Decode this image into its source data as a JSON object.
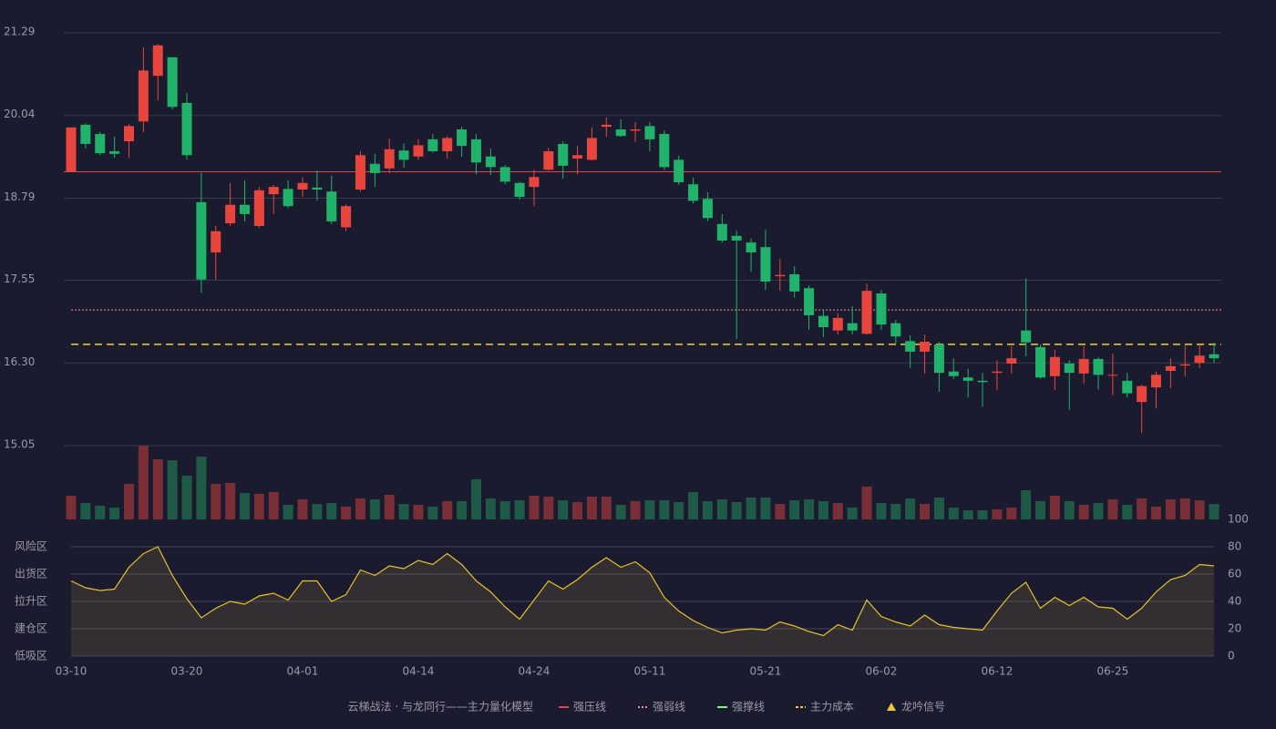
{
  "chart_data": [
    {
      "type": "candlestick",
      "ylim": [
        15.05,
        21.29
      ],
      "yticks": [
        15.05,
        {
          "value": 16.3,
          "label": "16.30"
        },
        17.55,
        18.79,
        20.04,
        21.29
      ],
      "grid": true,
      "up_color": "#e8463c",
      "down_color": "#22b36b",
      "candles": [
        [
          19.19,
          19.86,
          19.19,
          19.86
        ],
        [
          19.9,
          19.61,
          19.54,
          19.92
        ],
        [
          19.76,
          19.47,
          19.44,
          19.79
        ],
        [
          19.5,
          19.46,
          19.4,
          19.72
        ],
        [
          19.65,
          19.88,
          19.4,
          19.91
        ],
        [
          19.95,
          20.72,
          19.79,
          21.07
        ],
        [
          20.64,
          21.1,
          20.27,
          21.12
        ],
        [
          20.92,
          20.17,
          20.13,
          20.92
        ],
        [
          20.23,
          19.44,
          19.37,
          20.38
        ],
        [
          18.73,
          17.56,
          17.36,
          19.17
        ],
        [
          17.97,
          18.29,
          17.56,
          18.37
        ],
        [
          18.41,
          18.69,
          18.37,
          19.02
        ],
        [
          18.69,
          18.55,
          18.44,
          19.06
        ],
        [
          18.37,
          18.91,
          18.34,
          18.96
        ],
        [
          18.85,
          18.96,
          18.55,
          18.99
        ],
        [
          18.93,
          18.67,
          18.64,
          19.06
        ],
        [
          18.92,
          19.02,
          18.81,
          19.11
        ],
        [
          18.95,
          18.92,
          18.75,
          19.21
        ],
        [
          18.89,
          18.44,
          18.4,
          19.13
        ],
        [
          18.35,
          18.67,
          18.29,
          18.7
        ],
        [
          18.92,
          19.44,
          18.89,
          19.5
        ],
        [
          19.31,
          19.17,
          18.96,
          19.46
        ],
        [
          19.24,
          19.53,
          19.17,
          19.69
        ],
        [
          19.51,
          19.37,
          19.25,
          19.62
        ],
        [
          19.42,
          19.59,
          19.37,
          19.68
        ],
        [
          19.68,
          19.5,
          19.48,
          19.76
        ],
        [
          19.5,
          19.7,
          19.39,
          19.73
        ],
        [
          19.83,
          19.58,
          19.42,
          19.87
        ],
        [
          19.68,
          19.33,
          19.15,
          19.76
        ],
        [
          19.42,
          19.26,
          19.14,
          19.54
        ],
        [
          19.26,
          19.04,
          19.0,
          19.29
        ],
        [
          19.02,
          18.81,
          18.77,
          19.04
        ],
        [
          18.96,
          19.11,
          18.67,
          19.22
        ],
        [
          19.22,
          19.5,
          19.21,
          19.55
        ],
        [
          19.61,
          19.28,
          19.08,
          19.65
        ],
        [
          19.39,
          19.44,
          19.15,
          19.58
        ],
        [
          19.37,
          19.7,
          19.36,
          19.86
        ],
        [
          19.87,
          19.9,
          19.72,
          20.01
        ],
        [
          19.83,
          19.73,
          19.72,
          19.98
        ],
        [
          19.81,
          19.83,
          19.64,
          19.94
        ],
        [
          19.88,
          19.68,
          19.5,
          19.94
        ],
        [
          19.76,
          19.26,
          19.22,
          19.81
        ],
        [
          19.37,
          19.03,
          18.99,
          19.43
        ],
        [
          19.0,
          18.75,
          18.71,
          19.1
        ],
        [
          18.78,
          18.49,
          18.44,
          18.88
        ],
        [
          18.4,
          18.15,
          18.12,
          18.55
        ],
        [
          18.22,
          18.15,
          16.66,
          18.3
        ],
        [
          18.12,
          17.97,
          17.68,
          18.18
        ],
        [
          18.05,
          17.53,
          17.4,
          18.31
        ],
        [
          17.61,
          17.63,
          17.39,
          17.87
        ],
        [
          17.64,
          17.38,
          17.29,
          17.76
        ],
        [
          17.43,
          17.02,
          16.8,
          17.47
        ],
        [
          17.01,
          16.84,
          16.69,
          17.1
        ],
        [
          16.79,
          16.98,
          16.73,
          17.05
        ],
        [
          16.9,
          16.79,
          16.73,
          17.16
        ],
        [
          16.74,
          17.39,
          16.73,
          17.5
        ],
        [
          17.35,
          16.88,
          16.8,
          17.4
        ],
        [
          16.9,
          16.7,
          16.59,
          16.95
        ],
        [
          16.63,
          16.47,
          16.22,
          16.72
        ],
        [
          16.47,
          16.62,
          16.14,
          16.73
        ],
        [
          16.58,
          16.15,
          15.86,
          16.62
        ],
        [
          16.17,
          16.1,
          16.06,
          16.37
        ],
        [
          16.08,
          16.03,
          15.78,
          16.21
        ],
        [
          16.03,
          16.01,
          15.64,
          16.15
        ],
        [
          16.15,
          16.17,
          15.89,
          16.34
        ],
        [
          16.29,
          16.37,
          16.14,
          16.55
        ],
        [
          16.79,
          16.61,
          16.4,
          17.58
        ],
        [
          16.54,
          16.08,
          16.06,
          16.58
        ],
        [
          16.1,
          16.39,
          15.89,
          16.5
        ],
        [
          16.29,
          16.15,
          15.59,
          16.34
        ],
        [
          16.14,
          16.36,
          15.99,
          16.55
        ],
        [
          16.36,
          16.12,
          15.9,
          16.39
        ],
        [
          16.11,
          16.12,
          15.81,
          16.44
        ],
        [
          16.03,
          15.84,
          15.78,
          16.15
        ],
        [
          15.71,
          15.95,
          15.24,
          15.97
        ],
        [
          15.93,
          16.12,
          15.61,
          16.17
        ],
        [
          16.18,
          16.25,
          15.92,
          16.37
        ],
        [
          16.26,
          16.28,
          16.1,
          16.58
        ],
        [
          16.3,
          16.41,
          16.22,
          16.58
        ],
        [
          16.43,
          16.37,
          16.3,
          16.61
        ]
      ],
      "lines": [
        {
          "name": "强压线",
          "value": 19.19,
          "color": "#e0454f",
          "style": "solid"
        },
        {
          "name": "强弱线",
          "value": 17.1,
          "color": "#ff8a8a",
          "style": "dotted"
        },
        {
          "name": "强撑线",
          "color": "#7cfc7c",
          "style": "solid"
        },
        {
          "name": "主力成本",
          "value": 16.58,
          "color": "#f5d020",
          "style": "dashed"
        },
        {
          "name": "龙吟信号",
          "color": "#f5c542",
          "style": "triangle"
        }
      ],
      "legend_title": "云梯战法 · 与龙同行——主力量化模型",
      "legend_title_color": "#e8c46a"
    },
    {
      "type": "bar",
      "up_color": "#7a2f36",
      "down_color": "#1e5a45",
      "values": [
        26,
        18,
        15,
        13,
        39,
        81,
        66,
        65,
        48,
        69,
        39,
        40,
        29,
        28,
        30,
        16,
        22,
        17,
        18,
        14,
        23,
        22,
        27,
        17,
        16,
        14,
        20,
        20,
        44,
        23,
        20,
        21,
        26,
        25,
        21,
        19,
        25,
        25,
        16,
        20,
        21,
        21,
        19,
        30,
        20,
        22,
        19,
        24,
        24,
        17,
        21,
        22,
        20,
        18,
        13,
        36,
        18,
        17,
        23,
        17,
        24,
        13,
        10,
        10,
        11,
        13,
        32,
        20,
        26,
        20,
        16,
        18,
        22,
        16,
        23,
        14,
        22,
        23,
        21,
        17
      ]
    },
    {
      "type": "area",
      "color": "#e6c229",
      "fill": "rgba(160,135,70,0.18)",
      "ylim": [
        0,
        100
      ],
      "yticks": [
        0,
        20,
        40,
        60,
        80,
        100
      ],
      "ytick_colors": [
        "#ff3b3b",
        "#ff7043",
        "#4a90e2",
        "#e040fb",
        "#f5a623",
        "#33cc33"
      ],
      "zones": [
        {
          "label": "风险区",
          "value": 80,
          "color": "#f5a623"
        },
        {
          "label": "出货区",
          "value": 60,
          "color": "#e040fb"
        },
        {
          "label": "拉升区",
          "value": 40,
          "color": "#4a90e2"
        },
        {
          "label": "建仓区",
          "value": 20,
          "color": "#ff5050"
        },
        {
          "label": "低吸区",
          "value": 0,
          "color": "#ff3355"
        }
      ],
      "values": [
        55,
        50,
        48,
        49,
        65,
        75,
        80,
        59,
        42,
        28,
        35,
        40,
        38,
        44,
        46,
        41,
        55,
        55,
        40,
        45,
        63,
        59,
        66,
        64,
        70,
        67,
        75,
        67,
        55,
        47,
        36,
        27,
        41,
        55,
        49,
        56,
        65,
        72,
        65,
        69,
        61,
        43,
        33,
        26,
        21,
        17,
        19,
        20,
        19,
        25,
        22,
        18,
        15,
        23,
        19,
        41,
        29,
        25,
        22,
        30,
        23,
        21,
        20,
        19,
        33,
        46,
        54,
        35,
        43,
        37,
        43,
        36,
        35,
        27,
        35,
        47,
        56,
        59,
        67,
        66
      ],
      "categories": [
        "03-10",
        null,
        null,
        null,
        null,
        null,
        null,
        null,
        "03-20",
        null,
        null,
        null,
        null,
        null,
        null,
        null,
        "04-01",
        null,
        null,
        null,
        null,
        null,
        null,
        null,
        "04-14",
        null,
        null,
        null,
        null,
        null,
        null,
        null,
        "04-24",
        null,
        null,
        null,
        null,
        null,
        null,
        null,
        "05-11",
        null,
        null,
        null,
        null,
        null,
        null,
        null,
        "05-21",
        null,
        null,
        null,
        null,
        null,
        null,
        null,
        "06-02",
        null,
        null,
        null,
        null,
        null,
        null,
        null,
        "06-12",
        null,
        null,
        null,
        null,
        null,
        null,
        null,
        "06-25",
        null,
        null,
        null,
        null,
        null,
        null,
        null
      ]
    }
  ]
}
